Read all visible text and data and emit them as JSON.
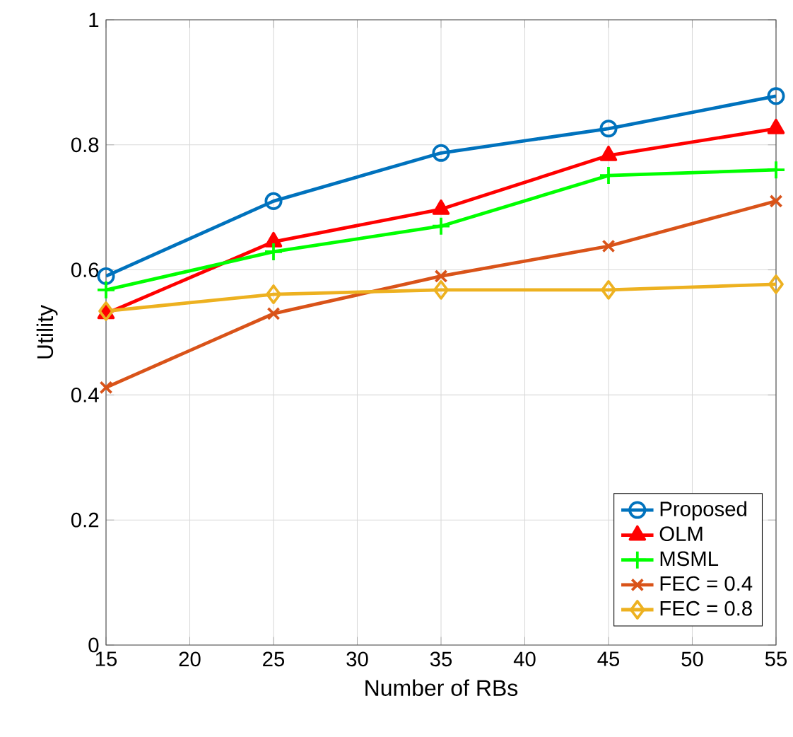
{
  "chart_data": {
    "type": "line",
    "xlabel": "Number of RBs",
    "ylabel": "Utility",
    "x": [
      15,
      25,
      35,
      45,
      55
    ],
    "series": [
      {
        "name": "Proposed",
        "color": "#0072bd",
        "marker": "circle",
        "values": [
          0.59,
          0.71,
          0.787,
          0.826,
          0.878
        ]
      },
      {
        "name": "OLM",
        "color": "#ff0000",
        "marker": "triangle",
        "values": [
          0.53,
          0.645,
          0.697,
          0.783,
          0.826
        ]
      },
      {
        "name": "MSML",
        "color": "#00ff00",
        "marker": "plus",
        "values": [
          0.568,
          0.629,
          0.67,
          0.751,
          0.76
        ]
      },
      {
        "name": "FEC = 0.4",
        "color": "#d95319",
        "marker": "cross",
        "values": [
          0.412,
          0.53,
          0.59,
          0.638,
          0.71
        ]
      },
      {
        "name": "FEC = 0.8",
        "color": "#edb120",
        "marker": "diamond",
        "values": [
          0.534,
          0.561,
          0.568,
          0.568,
          0.577
        ]
      }
    ],
    "xlim": [
      15,
      55
    ],
    "ylim": [
      0,
      1
    ],
    "xticks": [
      15,
      20,
      25,
      30,
      35,
      40,
      45,
      50,
      55
    ],
    "yticks": [
      0,
      0.2,
      0.4,
      0.6,
      0.8,
      1
    ],
    "grid": true,
    "legend": "bottom right",
    "line_style": "solid"
  }
}
